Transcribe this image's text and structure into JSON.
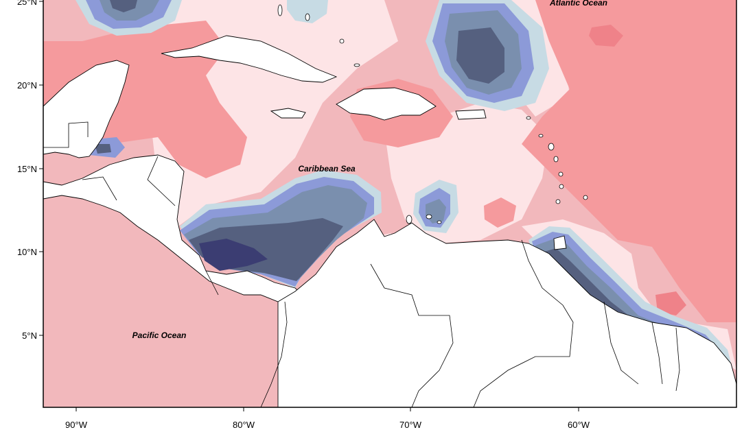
{
  "map": {
    "labels": {
      "atlantic": "Atlantic Ocean",
      "caribbean": "Caribbean Sea",
      "pacific": "Pacific Ocean"
    },
    "latitude_ticks": [
      "25°N",
      "20°N",
      "15°N",
      "10°N",
      "5°N"
    ],
    "longitude_ticks": [
      "90°W",
      "80°W",
      "70°W",
      "60°W"
    ],
    "colors": {
      "pos_1": "#fde4e6",
      "pos_2": "#f2b8bc",
      "pos_3": "#f59a9d",
      "pos_4": "#ef8289",
      "neg_1": "#c7dbe4",
      "neg_2": "#8c9ad8",
      "neg_3": "#7a8fae",
      "neg_4": "#55607f",
      "neg_5": "#3b3d72",
      "land": "#ffffff",
      "coast": "#000000"
    }
  }
}
